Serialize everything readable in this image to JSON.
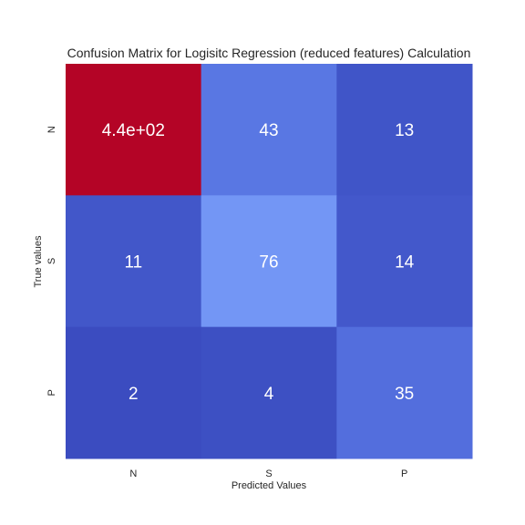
{
  "chart_data": {
    "type": "heatmap",
    "title": "Confusion Matrix for Logisitc Regression (reduced features) Calculation",
    "xlabel": "Predicted Values",
    "ylabel": "True values",
    "x_categories": [
      "N",
      "S",
      "P"
    ],
    "y_categories": [
      "N",
      "S",
      "P"
    ],
    "values": [
      [
        440,
        43,
        13
      ],
      [
        11,
        76,
        14
      ],
      [
        2,
        4,
        35
      ]
    ],
    "labels": [
      [
        "4.4e+02",
        "43",
        "13"
      ],
      [
        "11",
        "76",
        "14"
      ],
      [
        "2",
        "4",
        "35"
      ]
    ],
    "colormap": "coolwarm",
    "colorbar": false,
    "cell_colors": [
      [
        "#b40426",
        "#5977e3",
        "#4055c8"
      ],
      [
        "#4257c9",
        "#7396f5",
        "#4358cb"
      ],
      [
        "#3b4cc0",
        "#3d50c3",
        "#536edd"
      ]
    ]
  }
}
